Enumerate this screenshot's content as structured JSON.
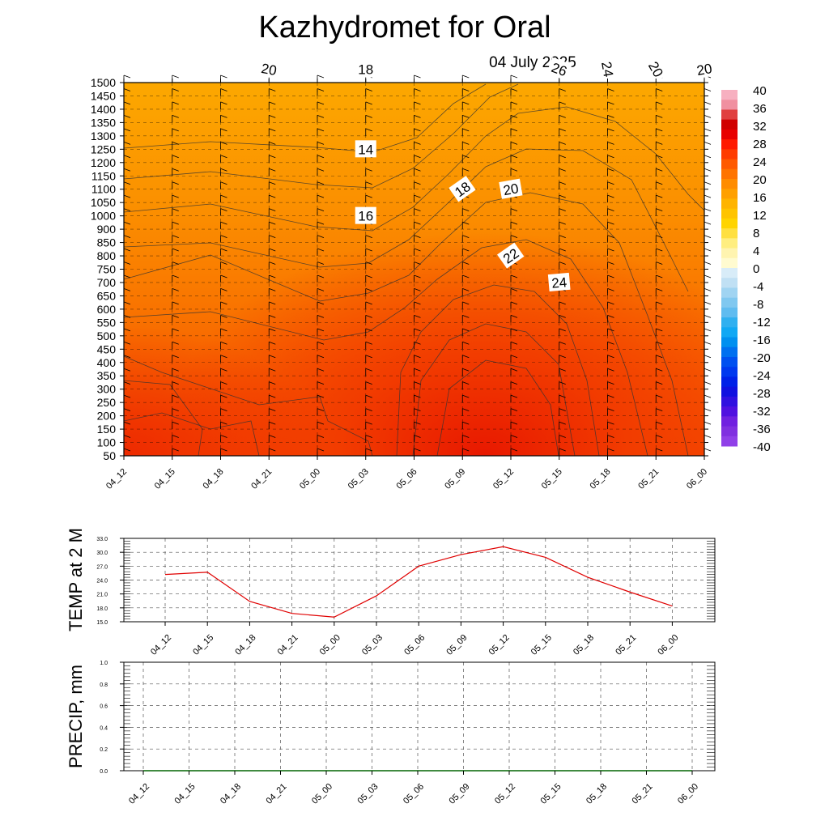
{
  "title": "Kazhydromet  for Oral",
  "date": "04 July 2025",
  "times": [
    "04_12",
    "04_15",
    "04_18",
    "04_21",
    "05_00",
    "05_03",
    "05_06",
    "05_09",
    "05_12",
    "05_15",
    "05_18",
    "05_21",
    "06_00"
  ],
  "colors": {
    "grid": "#555555",
    "temp_line": "#e00000",
    "precip_line": "#006400",
    "contour_line": "#333333"
  },
  "chart_data": [
    {
      "id": "cross_section",
      "type": "heatmap",
      "xlabels": [
        "04_12",
        "04_15",
        "04_18",
        "04_21",
        "05_00",
        "05_03",
        "05_06",
        "05_09",
        "05_12",
        "05_15",
        "05_18",
        "05_21",
        "06_00"
      ],
      "ylabels": [
        "1500",
        "1450",
        "1400",
        "1350",
        "1300",
        "1250",
        "1200",
        "1150",
        "1100",
        "1050",
        "1000",
        "900",
        "850",
        "800",
        "750",
        "700",
        "650",
        "600",
        "550",
        "500",
        "450",
        "400",
        "350",
        "300",
        "250",
        "200",
        "150",
        "100",
        "50"
      ],
      "colorbar": {
        "labels": [
          "40",
          "36",
          "32",
          "28",
          "24",
          "20",
          "16",
          "12",
          "8",
          "4",
          "0",
          "-4",
          "-8",
          "-12",
          "-16",
          "-20",
          "-24",
          "-28",
          "-32",
          "-36",
          "-40"
        ],
        "range": [
          -40,
          40
        ]
      },
      "contour_labels": [
        {
          "text": "14",
          "time": "05_03",
          "level": "1250"
        },
        {
          "text": "16",
          "time": "05_03",
          "level": "1000"
        },
        {
          "text": "18",
          "time": "05_03",
          "level": "775"
        },
        {
          "text": "20",
          "time": "04_21",
          "level": "510"
        },
        {
          "text": "18",
          "time": "05_09",
          "level": "1100"
        },
        {
          "text": "20",
          "time": "05_12",
          "level": "1100"
        },
        {
          "text": "22",
          "time": "05_12",
          "level": "800"
        },
        {
          "text": "24",
          "time": "05_15",
          "level": "700"
        },
        {
          "text": "26",
          "time": "05_15",
          "level": "490"
        },
        {
          "text": "22",
          "time": "05_18",
          "level": "710"
        },
        {
          "text": "18",
          "time": "05_21",
          "level": "1030"
        },
        {
          "text": "20",
          "time": "05_21",
          "level": "690"
        },
        {
          "text": "24",
          "time": "05_18",
          "level": "160"
        },
        {
          "text": "20",
          "time": "06_00",
          "level": "160"
        }
      ]
    },
    {
      "id": "temp_2m",
      "type": "line",
      "ylabel": "TEMP at 2 M",
      "categories": [
        "04_12",
        "04_15",
        "04_18",
        "04_21",
        "05_00",
        "05_03",
        "05_06",
        "05_09",
        "05_12",
        "05_15",
        "05_18",
        "05_21",
        "06_00"
      ],
      "values": [
        25.2,
        25.7,
        19.4,
        16.8,
        16.0,
        20.6,
        27.0,
        29.5,
        31.2,
        28.9,
        24.6,
        21.4,
        18.4
      ],
      "ylim": [
        15.0,
        33.0
      ],
      "yticks": [
        "33.0",
        "30.0",
        "27.0",
        "24.0",
        "21.0",
        "18.0",
        "15.0"
      ],
      "grid": true
    },
    {
      "id": "precip",
      "type": "line",
      "ylabel": "PRECIP, mm",
      "categories": [
        "04_12",
        "04_15",
        "04_18",
        "04_21",
        "05_00",
        "05_03",
        "05_06",
        "05_09",
        "05_12",
        "05_15",
        "05_18",
        "05_21",
        "06_00"
      ],
      "values": [
        0,
        0,
        0,
        0,
        0,
        0,
        0,
        0,
        0,
        0,
        0,
        0,
        0
      ],
      "ylim": [
        0.0,
        1.0
      ],
      "yticks": [
        "1.0",
        "0.8",
        "0.6",
        "0.4",
        "0.2",
        "0.0"
      ],
      "grid": true
    }
  ]
}
